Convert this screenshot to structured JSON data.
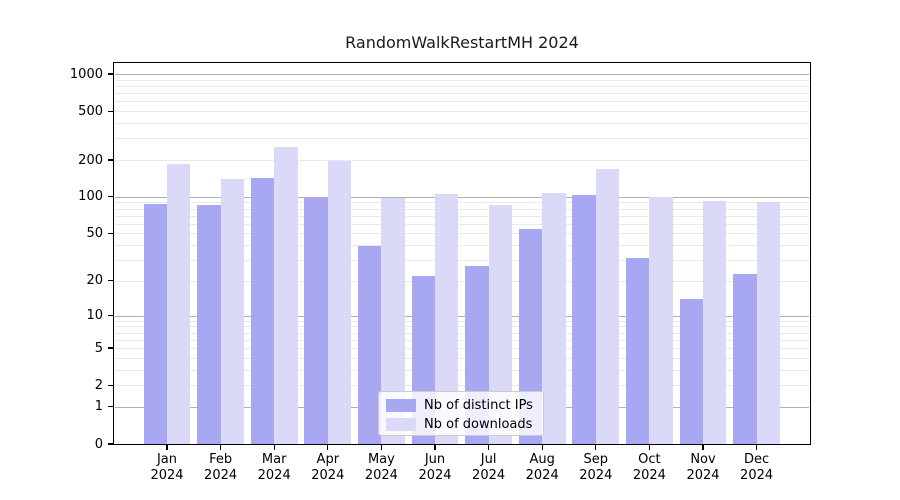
{
  "chart_data": {
    "type": "bar",
    "title": "RandomWalkRestartMH 2024",
    "categories": [
      "Jan",
      "Feb",
      "Mar",
      "Apr",
      "May",
      "Jun",
      "Jul",
      "Aug",
      "Sep",
      "Oct",
      "Nov",
      "Dec"
    ],
    "x_tick_second_line": "2024",
    "series": [
      {
        "name": "Nb of distinct IPs",
        "color": "#a8a8f2",
        "values": [
          87,
          86,
          142,
          98,
          39,
          22,
          27,
          54,
          104,
          31,
          14,
          23
        ]
      },
      {
        "name": "Nb of downloads",
        "color": "#dadaf8",
        "values": [
          185,
          141,
          255,
          196,
          98,
          106,
          86,
          108,
          170,
          100,
          92,
          91
        ]
      }
    ],
    "xlabel": "",
    "ylabel": "",
    "y_ticks": [
      0,
      1,
      2,
      5,
      10,
      20,
      50,
      100,
      200,
      500,
      1000
    ],
    "y_scale": "log10(1+x)",
    "ylim": [
      0,
      1000
    ],
    "grid": true,
    "major_gridline_values": [
      1,
      10,
      100,
      1000
    ],
    "legend_position": "lower-center-inside"
  },
  "legend": {
    "items": [
      {
        "label": "Nb of distinct IPs"
      },
      {
        "label": "Nb of downloads"
      }
    ]
  },
  "colors": {
    "bar_distinct_ips": "#a8a8f2",
    "bar_downloads": "#dadaf8",
    "major_grid": "#b0b0b0",
    "minor_grid": "#e9e9e9",
    "axis": "#000000",
    "legend_border": "#cccccc",
    "background": "#ffffff",
    "text": "#000000"
  }
}
